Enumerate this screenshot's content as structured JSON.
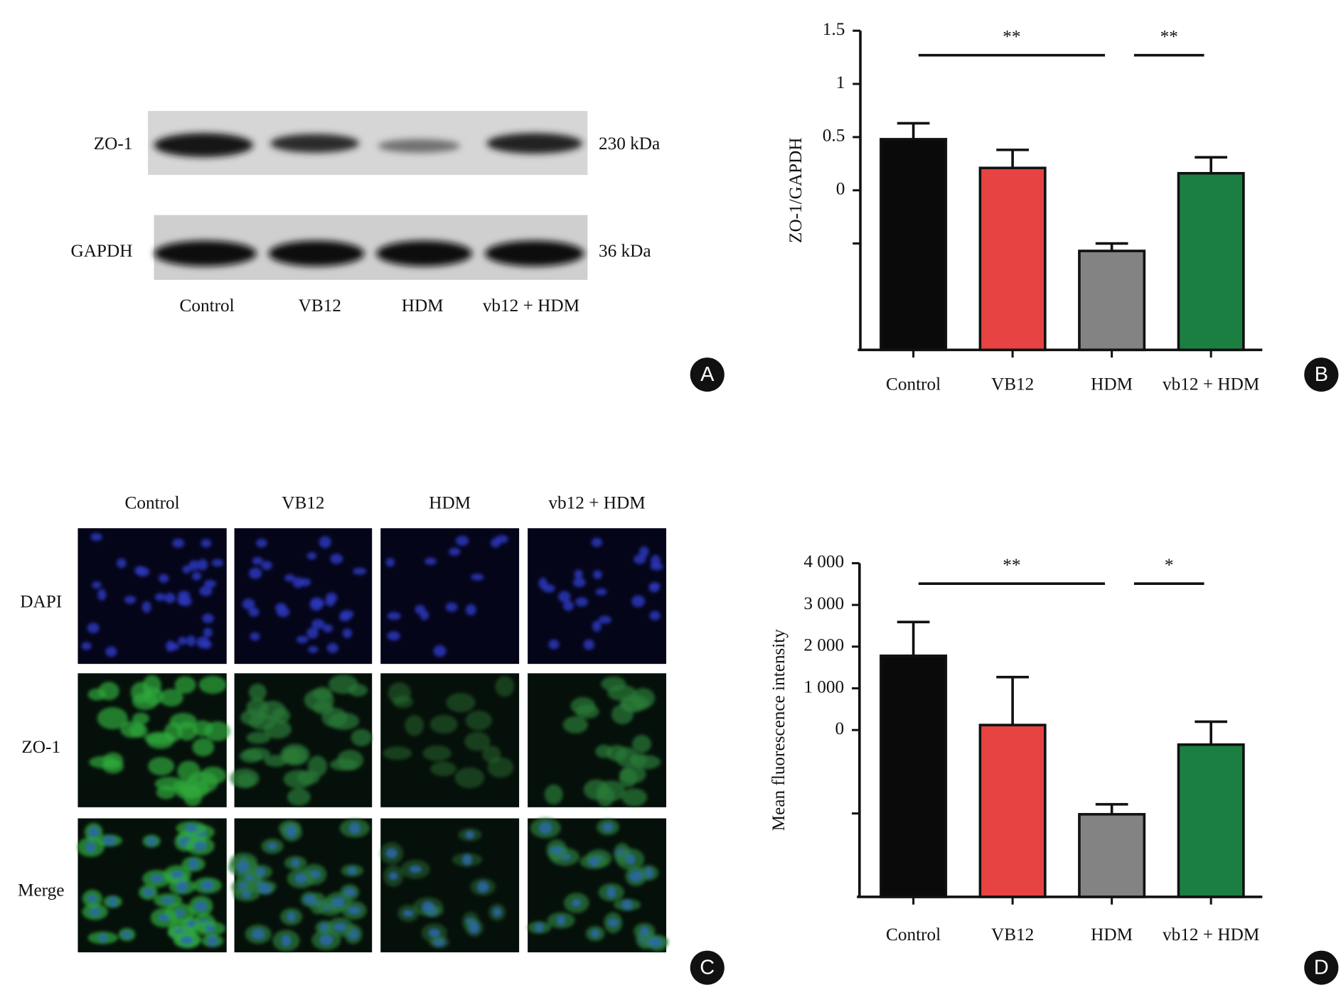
{
  "panel_a": {
    "bands": [
      "ZO-1",
      "GAPDH"
    ],
    "sizes": [
      "230 kDa",
      "36 kDa"
    ],
    "lanes": [
      "Control",
      "VB12",
      "HDM",
      "vb12 + HDM"
    ]
  },
  "chart_data": [
    {
      "type": "bar",
      "y_label": "ZO-1/GAPDH",
      "categories": [
        "Control",
        "VB12",
        "HDM",
        "vb12 + HDM"
      ],
      "values": [
        0.48,
        0.21,
        -0.57,
        0.16
      ],
      "errors": [
        0.15,
        0.17,
        0.07,
        0.15
      ],
      "colors": [
        "#0a0a0a",
        "#e84343",
        "#838383",
        "#1b7f42"
      ],
      "ylim": [
        -1.5,
        1.5
      ],
      "yticks": [
        {
          "value": -0.5,
          "label": null
        },
        0.0,
        0.5,
        1.0,
        1.5
      ],
      "annotations": [
        {
          "text": "**",
          "from": "Control",
          "to": "HDM",
          "y": 1.27
        },
        {
          "text": "**",
          "from": "HDM",
          "to": "vb12 + HDM",
          "y": 1.27
        }
      ]
    },
    {
      "type": "bar",
      "y_label": "Mean fluorescence intensity",
      "categories": [
        "Control",
        "VB12",
        "HDM",
        "vb12 + HDM"
      ],
      "values": [
        1780,
        120,
        -2020,
        -350
      ],
      "errors": [
        810,
        1150,
        240,
        550
      ],
      "colors": [
        "#0a0a0a",
        "#e84343",
        "#838383",
        "#1b7f42"
      ],
      "ylim": [
        -4000,
        4000
      ],
      "yticks": [
        {
          "value": -2000,
          "label": null
        },
        0,
        {
          "value": 1000,
          "label": "1 000"
        },
        {
          "value": 2000,
          "label": "2 000"
        },
        {
          "value": 3000,
          "label": "3 000"
        },
        {
          "value": 4000,
          "label": "4 000"
        }
      ],
      "annotations": [
        {
          "text": "**",
          "from": "Control",
          "to": "HDM",
          "y": 3510
        },
        {
          "text": "*",
          "from": "HDM",
          "to": "vb12 + HDM",
          "y": 3510
        }
      ]
    }
  ],
  "panel_c": {
    "columns": [
      "Control",
      "VB12",
      "HDM",
      "vb12 + HDM"
    ],
    "rows": [
      "DAPI",
      "ZO-1",
      "Merge"
    ]
  },
  "panel_labels": [
    "A",
    "B",
    "C",
    "D"
  ]
}
